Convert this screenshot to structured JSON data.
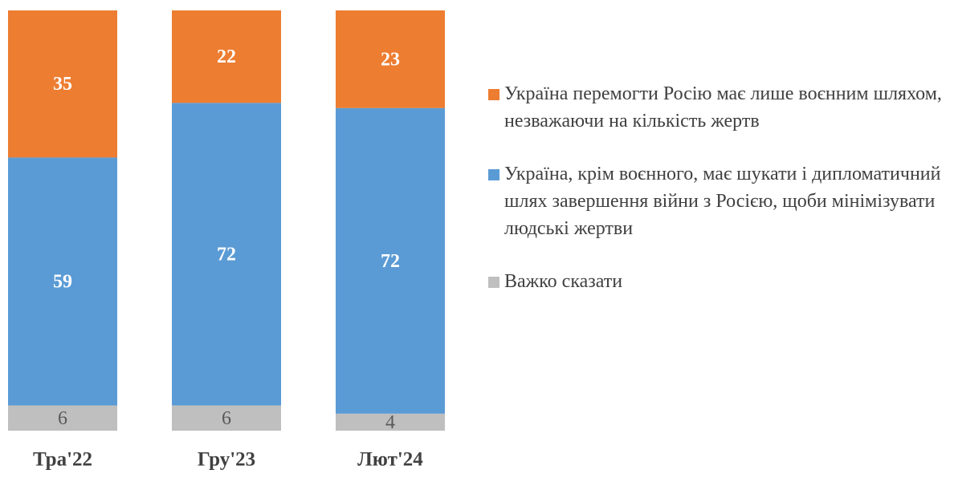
{
  "chart_data": {
    "type": "bar",
    "stacking": "percent",
    "categories": [
      "Тра'22",
      "Гру'23",
      "Лют'24"
    ],
    "series": [
      {
        "name": "Важко сказати",
        "color": "#bfbfbf",
        "values": [
          6,
          6,
          4
        ]
      },
      {
        "name": "Україна, крім воєнного, має шукати і дипломатичний шлях завершення війни з Росією, щоби мінімізувати людські жертви",
        "color": "#5b9bd5",
        "values": [
          59,
          72,
          72
        ]
      },
      {
        "name": "Україна перемогти Росію має лише воєнним шляхом, незважаючи на кількість жертв",
        "color": "#ed7d31",
        "values": [
          35,
          22,
          23
        ]
      }
    ],
    "legend": "right"
  }
}
